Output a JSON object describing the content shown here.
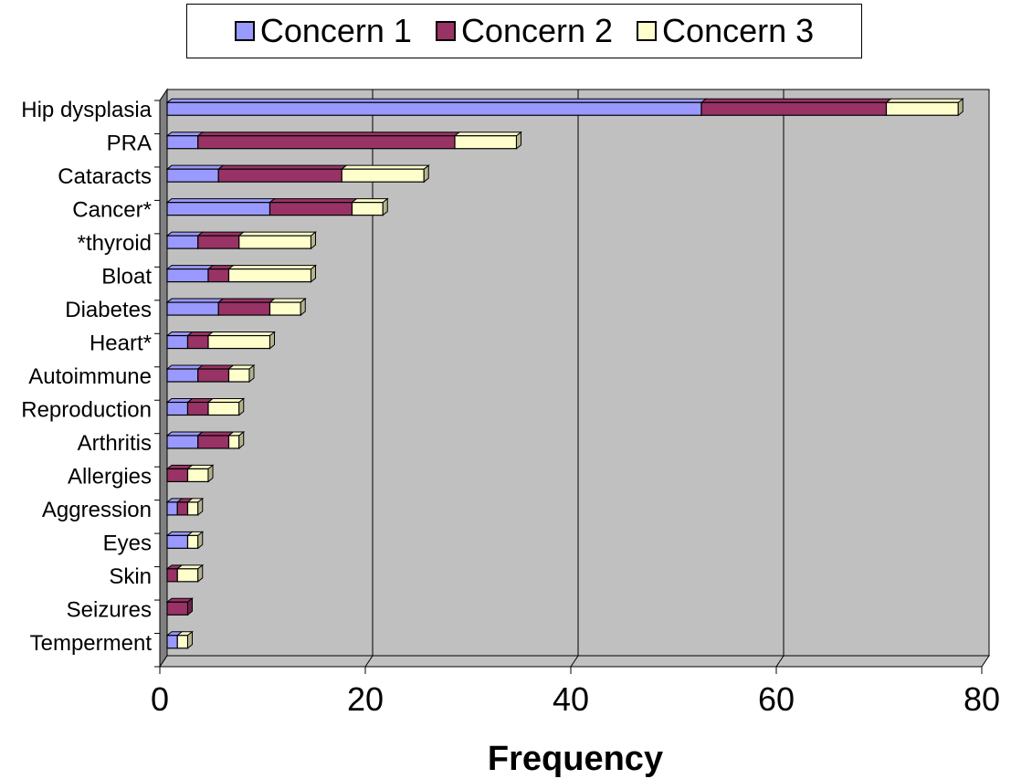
{
  "chart_data": {
    "type": "bar",
    "orientation": "horizontal",
    "stacked": true,
    "style": "3d",
    "title": "",
    "xlabel": "Frequency",
    "ylabel": "",
    "xlim": [
      0,
      80
    ],
    "x_ticks": [
      "0",
      "20",
      "40",
      "60",
      "80"
    ],
    "grid": true,
    "legend_position": "top",
    "plot_background": "#c0c0c0",
    "categories": [
      "Hip dysplasia",
      "PRA",
      "Cataracts",
      "Cancer*",
      "*thyroid",
      "Bloat",
      "Diabetes",
      "Heart*",
      "Autoimmune",
      "Reproduction",
      "Arthritis",
      "Allergies",
      "Aggression",
      "Eyes",
      "Skin",
      "Seizures",
      "Temperment"
    ],
    "series": [
      {
        "name": "Concern 1",
        "color": "#9999ff",
        "values": [
          52,
          3,
          5,
          10,
          3,
          4,
          5,
          2,
          3,
          2,
          3,
          0,
          1,
          2,
          0,
          0,
          1
        ]
      },
      {
        "name": "Concern 2",
        "color": "#993366",
        "values": [
          18,
          25,
          12,
          8,
          4,
          2,
          5,
          2,
          3,
          2,
          3,
          2,
          1,
          0,
          1,
          2,
          0
        ]
      },
      {
        "name": "Concern 3",
        "color": "#ffffcc",
        "values": [
          7,
          6,
          8,
          3,
          7,
          8,
          3,
          6,
          2,
          3,
          1,
          2,
          1,
          1,
          2,
          0,
          1
        ]
      }
    ]
  }
}
